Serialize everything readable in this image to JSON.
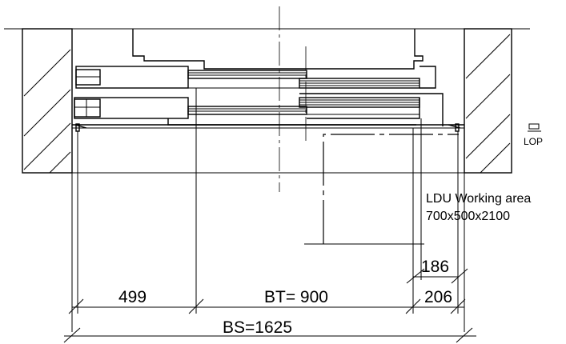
{
  "dimensions": {
    "left_width": "499",
    "door_width": "BT= 900",
    "right_clearance": "206",
    "inner_offset": "186",
    "shaft_width": "BS=1625"
  },
  "labels": {
    "lop": "LOP",
    "working_area_title": "LDU Working area",
    "working_area_size": "700x500x2100"
  }
}
